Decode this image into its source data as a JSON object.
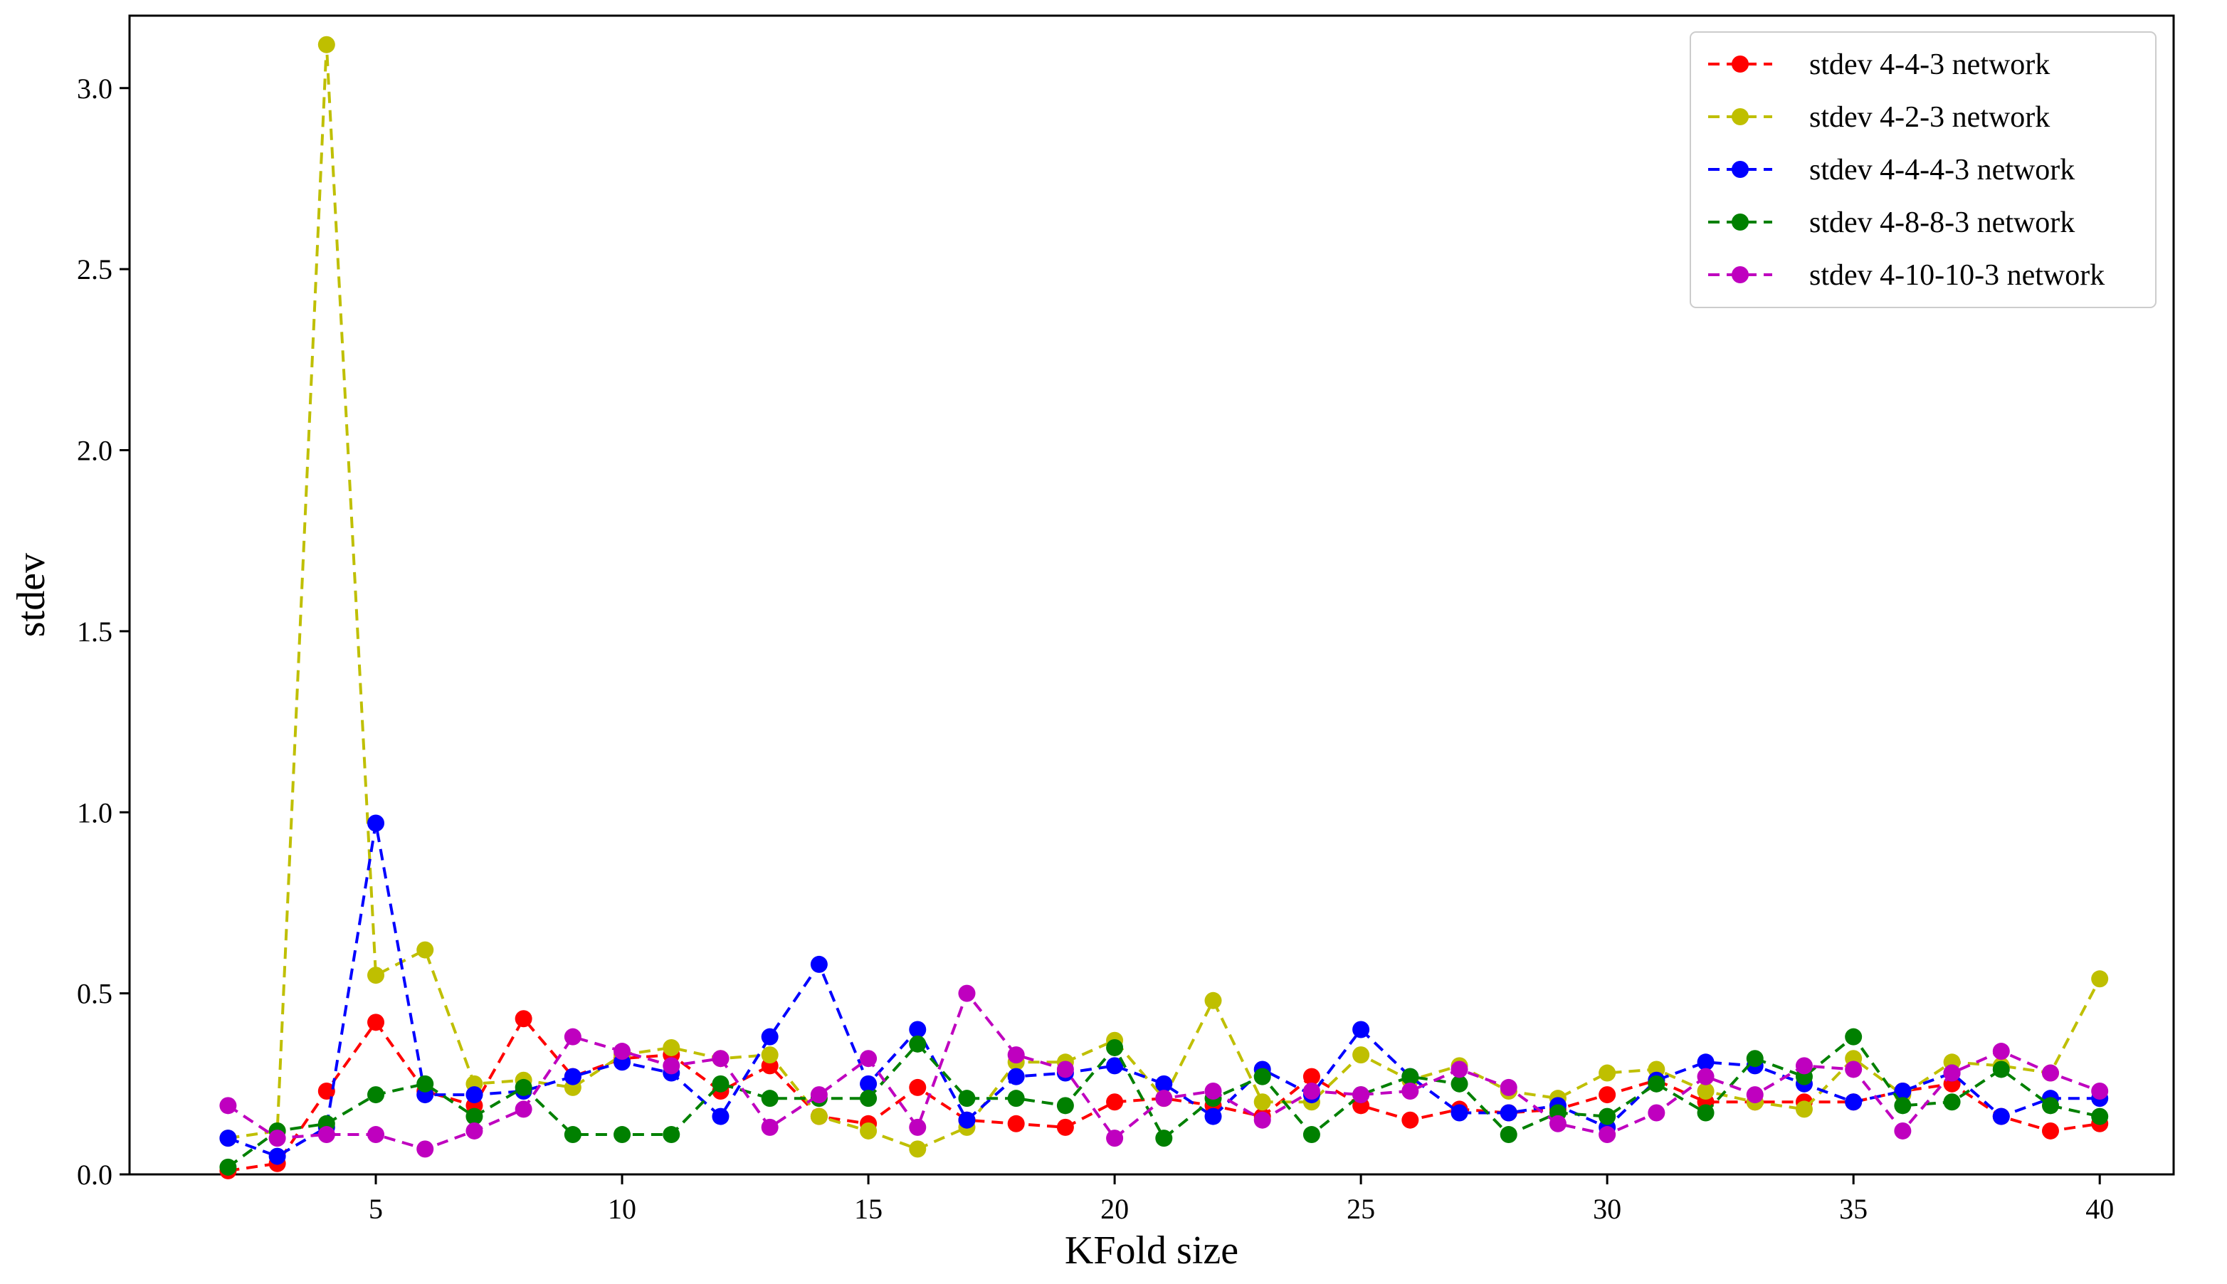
{
  "chart_data": {
    "type": "line",
    "title": "",
    "xlabel": "KFold size",
    "ylabel": "stdev",
    "xlim": [
      0,
      41.5
    ],
    "ylim": [
      0,
      3.2
    ],
    "xticks": [
      5,
      10,
      15,
      20,
      25,
      30,
      35,
      40
    ],
    "xtick_labels": [
      "5",
      "10",
      "15",
      "20",
      "25",
      "30",
      "35",
      "40"
    ],
    "yticks": [
      0,
      0.5,
      1,
      1.5,
      2,
      2.5,
      3
    ],
    "ytick_labels": [
      "0.0",
      "0.5",
      "1.0",
      "1.5",
      "2.0",
      "2.5",
      "3.0"
    ],
    "grid": false,
    "legend_position": "top-right",
    "line_style": "dashed",
    "marker": "circle",
    "x": [
      2,
      3,
      4,
      5,
      6,
      7,
      8,
      9,
      10,
      11,
      12,
      13,
      14,
      15,
      16,
      17,
      18,
      19,
      20,
      21,
      22,
      23,
      24,
      25,
      26,
      27,
      28,
      29,
      30,
      31,
      32,
      33,
      34,
      35,
      36,
      37,
      38,
      39,
      40
    ],
    "series": [
      {
        "name": "stdev 4-4-3 network",
        "color": "#ff0000",
        "values": [
          0.01,
          0.03,
          0.23,
          0.42,
          0.23,
          0.19,
          0.43,
          0.27,
          0.32,
          0.33,
          0.23,
          0.3,
          0.16,
          0.14,
          0.24,
          0.15,
          0.14,
          0.13,
          0.2,
          0.21,
          0.19,
          0.16,
          0.27,
          0.19,
          0.15,
          0.18,
          0.17,
          0.18,
          0.22,
          0.26,
          0.2,
          0.2,
          0.2,
          0.2,
          0.23,
          0.25,
          0.16,
          0.12,
          0.14
        ]
      },
      {
        "name": "stdev 4-2-3 network",
        "color": "#bfbf00",
        "values": [
          0.1,
          0.12,
          3.12,
          0.55,
          0.62,
          0.25,
          0.26,
          0.24,
          0.33,
          0.35,
          0.32,
          0.33,
          0.16,
          0.12,
          0.07,
          0.13,
          0.31,
          0.31,
          0.37,
          0.21,
          0.48,
          0.2,
          0.2,
          0.33,
          0.26,
          0.3,
          0.23,
          0.21,
          0.28,
          0.29,
          0.23,
          0.2,
          0.18,
          0.32,
          0.22,
          0.31,
          0.3,
          0.28,
          0.54
        ]
      },
      {
        "name": "stdev 4-4-4-3 network",
        "color": "#0000ff",
        "values": [
          0.1,
          0.05,
          0.13,
          0.97,
          0.22,
          0.22,
          0.23,
          0.27,
          0.31,
          0.28,
          0.16,
          0.38,
          0.58,
          0.25,
          0.4,
          0.15,
          0.27,
          0.28,
          0.3,
          0.25,
          0.16,
          0.29,
          0.22,
          0.4,
          0.27,
          0.17,
          0.17,
          0.19,
          0.13,
          0.26,
          0.31,
          0.3,
          0.25,
          0.2,
          0.23,
          0.28,
          0.16,
          0.21,
          0.21
        ]
      },
      {
        "name": "stdev 4-8-8-3 network",
        "color": "#008000",
        "values": [
          0.02,
          0.12,
          0.14,
          0.22,
          0.25,
          0.16,
          0.24,
          0.11,
          0.11,
          0.11,
          0.25,
          0.21,
          0.21,
          0.21,
          0.36,
          0.21,
          0.21,
          0.19,
          0.35,
          0.1,
          0.21,
          0.27,
          0.11,
          0.22,
          0.27,
          0.25,
          0.11,
          0.17,
          0.16,
          0.25,
          0.17,
          0.32,
          0.27,
          0.38,
          0.19,
          0.2,
          0.29,
          0.19,
          0.16
        ]
      },
      {
        "name": "stdev 4-10-10-3 network",
        "color": "#bf00bf",
        "values": [
          0.19,
          0.1,
          0.11,
          0.11,
          0.07,
          0.12,
          0.18,
          0.38,
          0.34,
          0.3,
          0.32,
          0.13,
          0.22,
          0.32,
          0.13,
          0.5,
          0.33,
          0.29,
          0.1,
          0.21,
          0.23,
          0.15,
          0.23,
          0.22,
          0.23,
          0.29,
          0.24,
          0.14,
          0.11,
          0.17,
          0.27,
          0.22,
          0.3,
          0.29,
          0.12,
          0.28,
          0.34,
          0.28,
          0.23
        ]
      }
    ]
  }
}
